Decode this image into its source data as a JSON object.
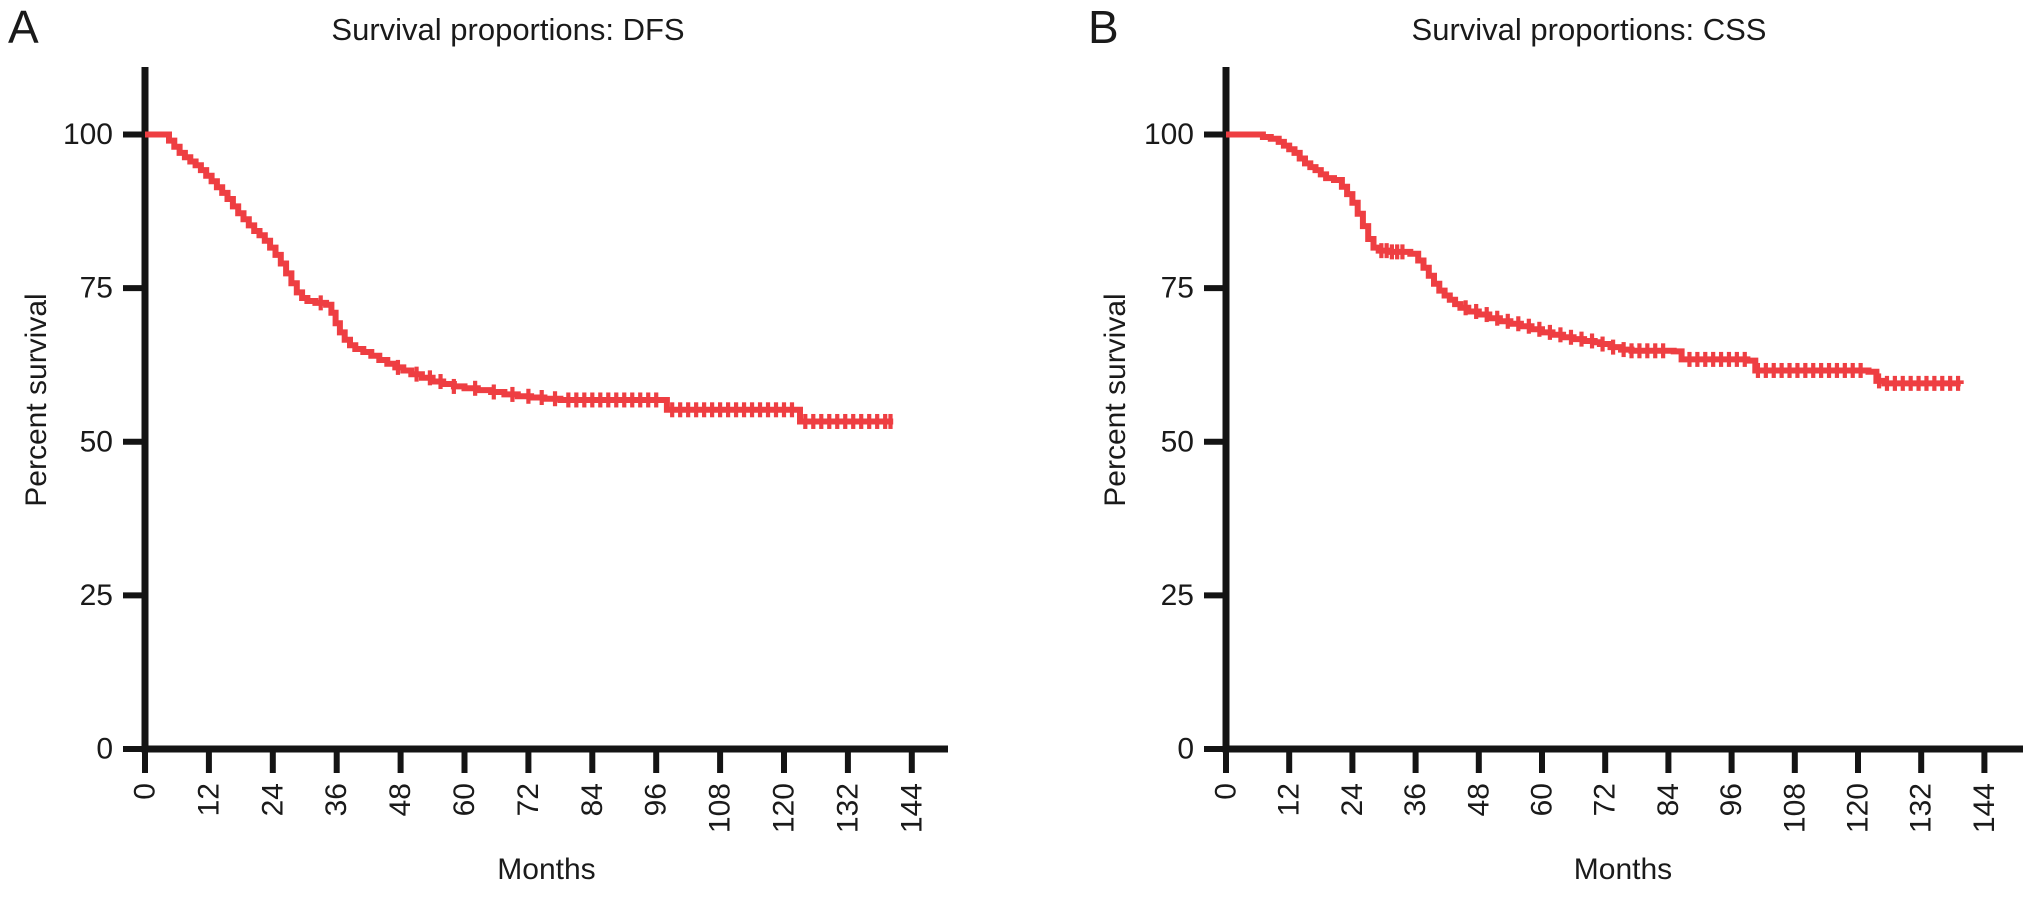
{
  "figure": {
    "background": "#ffffff",
    "axis_color": "#141414",
    "text_color": "#1a1a1a",
    "curve_color": "#ee3e42"
  },
  "chart_data": [
    {
      "type": "line",
      "subtype": "kaplan-meier-step",
      "panel_label": "A",
      "title": "Survival proportions: DFS",
      "xlabel": "Months",
      "ylabel": "Percent survival",
      "xticks": [
        0,
        12,
        24,
        36,
        48,
        60,
        72,
        84,
        96,
        108,
        120,
        132,
        144
      ],
      "yticks": [
        0,
        25,
        50,
        75,
        100
      ],
      "xlim": [
        0,
        151
      ],
      "ylim": [
        0,
        100
      ],
      "grid": false,
      "legend": "none",
      "line_color": "#ee3e42",
      "series": [
        {
          "name": "DFS",
          "steps": [
            [
              0,
              100
            ],
            [
              3.5,
              100
            ],
            [
              4.5,
              99
            ],
            [
              5.5,
              98
            ],
            [
              6.5,
              97
            ],
            [
              7.5,
              96.3
            ],
            [
              8.5,
              95.6
            ],
            [
              9.5,
              95
            ],
            [
              10.5,
              94.2
            ],
            [
              11.5,
              93.3
            ],
            [
              12.5,
              92.4
            ],
            [
              13.5,
              91.4
            ],
            [
              14.5,
              90.5
            ],
            [
              15.5,
              89.5
            ],
            [
              16.5,
              88.3
            ],
            [
              17.5,
              87.2
            ],
            [
              18.5,
              86.2
            ],
            [
              19.5,
              85.2
            ],
            [
              20.5,
              84.3
            ],
            [
              21.5,
              83.6
            ],
            [
              22.5,
              82.7
            ],
            [
              23.5,
              81.6
            ],
            [
              24.5,
              80.4
            ],
            [
              25.5,
              79
            ],
            [
              26.5,
              77.4
            ],
            [
              27.5,
              75.8
            ],
            [
              28.5,
              74.3
            ],
            [
              29.5,
              73.4
            ],
            [
              30.5,
              72.9
            ],
            [
              32,
              72.6
            ],
            [
              34,
              72.3
            ],
            [
              35,
              71
            ],
            [
              35.8,
              69.3
            ],
            [
              36.6,
              67.8
            ],
            [
              37.5,
              66.6
            ],
            [
              38.5,
              65.7
            ],
            [
              39.5,
              65.1
            ],
            [
              41,
              64.6
            ],
            [
              42.5,
              64
            ],
            [
              44,
              63.3
            ],
            [
              45.5,
              62.7
            ],
            [
              47,
              62.1
            ],
            [
              48.5,
              61.6
            ],
            [
              50,
              61
            ],
            [
              52,
              60.4
            ],
            [
              54,
              59.8
            ],
            [
              56,
              59.4
            ],
            [
              58,
              59
            ],
            [
              60,
              58.7
            ],
            [
              62.5,
              58.4
            ],
            [
              65,
              58.1
            ],
            [
              67.5,
              57.7
            ],
            [
              70,
              57.4
            ],
            [
              72.5,
              57.2
            ],
            [
              75,
              57
            ],
            [
              78,
              56.8
            ],
            [
              97,
              56.8
            ],
            [
              98,
              55.2
            ],
            [
              122,
              55.2
            ],
            [
              123,
              53.3
            ],
            [
              140.5,
              53.3
            ]
          ],
          "censor_marks_months": [
            33,
            47.5,
            51,
            53.5,
            55.5,
            58,
            62,
            65.5,
            69,
            72,
            74.5,
            77,
            79.5,
            81,
            82.5,
            84,
            85.5,
            87,
            88.5,
            90,
            91.5,
            93,
            94.5,
            96,
            99,
            100.5,
            102,
            103.5,
            105,
            106.5,
            108,
            109.5,
            111,
            112.5,
            114,
            115.5,
            117,
            118.5,
            120,
            121.5,
            124,
            125.5,
            127,
            128.5,
            130,
            131.5,
            133,
            134.5,
            136,
            137.5,
            139,
            140
          ]
        }
      ]
    },
    {
      "type": "line",
      "subtype": "kaplan-meier-step",
      "panel_label": "B",
      "title": "Survival proportions: CSS",
      "xlabel": "Months",
      "ylabel": "Percent survival",
      "xticks": [
        0,
        12,
        24,
        36,
        48,
        60,
        72,
        84,
        96,
        108,
        120,
        132,
        144
      ],
      "yticks": [
        0,
        25,
        50,
        75,
        100
      ],
      "xlim": [
        0,
        151
      ],
      "ylim": [
        0,
        100
      ],
      "grid": false,
      "legend": "none",
      "line_color": "#ee3e42",
      "series": [
        {
          "name": "CSS",
          "steps": [
            [
              0,
              100
            ],
            [
              6,
              100
            ],
            [
              7,
              99.6
            ],
            [
              8.5,
              99.3
            ],
            [
              10,
              98.8
            ],
            [
              11,
              98.2
            ],
            [
              12,
              97.6
            ],
            [
              13,
              97
            ],
            [
              14,
              96.1
            ],
            [
              15,
              95.3
            ],
            [
              16,
              94.7
            ],
            [
              17,
              94.2
            ],
            [
              18,
              93.5
            ],
            [
              19,
              92.9
            ],
            [
              20.5,
              92.6
            ],
            [
              22,
              91.5
            ],
            [
              23,
              90.3
            ],
            [
              24,
              88.9
            ],
            [
              25,
              87.1
            ],
            [
              26,
              85.1
            ],
            [
              27,
              83
            ],
            [
              28,
              81.6
            ],
            [
              29,
              81.1
            ],
            [
              31,
              80.9
            ],
            [
              35,
              80.6
            ],
            [
              36.5,
              79.5
            ],
            [
              37.5,
              78.3
            ],
            [
              38.5,
              77
            ],
            [
              39.5,
              75.7
            ],
            [
              40.5,
              74.6
            ],
            [
              41.5,
              73.8
            ],
            [
              42.5,
              73.1
            ],
            [
              43.5,
              72.4
            ],
            [
              44.5,
              71.8
            ],
            [
              46,
              71.2
            ],
            [
              48,
              70.7
            ],
            [
              50,
              70.1
            ],
            [
              52,
              69.6
            ],
            [
              54,
              69.2
            ],
            [
              56,
              68.8
            ],
            [
              58,
              68.3
            ],
            [
              60,
              67.8
            ],
            [
              62,
              67.4
            ],
            [
              64,
              67
            ],
            [
              66,
              66.7
            ],
            [
              68,
              66.4
            ],
            [
              70,
              66.2
            ],
            [
              71,
              65.9
            ],
            [
              73,
              65.4
            ],
            [
              75,
              65
            ],
            [
              77,
              64.8
            ],
            [
              85,
              64.7
            ],
            [
              86.5,
              63.4
            ],
            [
              99,
              63.2
            ],
            [
              100.5,
              61.6
            ],
            [
              122,
              61.4
            ],
            [
              123.5,
              59.9
            ],
            [
              125,
              59.5
            ],
            [
              139.5,
              59.4
            ]
          ],
          "censor_marks_months": [
            29.5,
            30.5,
            31.5,
            32.5,
            33.5,
            45.5,
            47.5,
            49.5,
            51.5,
            53.5,
            55.5,
            57.5,
            59.5,
            61.5,
            63.5,
            65.5,
            67.5,
            69.5,
            71.5,
            73.5,
            75.5,
            77,
            78.5,
            80,
            81.5,
            83,
            88,
            89.5,
            91,
            92.5,
            94,
            95.5,
            97,
            98.5,
            101,
            102.5,
            104,
            105.5,
            107,
            108.5,
            110,
            111.5,
            113,
            114.5,
            116,
            117.5,
            119,
            120.5,
            124,
            125.5,
            127,
            128.5,
            130,
            131.5,
            133,
            134.5,
            136,
            137.5,
            139
          ]
        }
      ]
    }
  ]
}
